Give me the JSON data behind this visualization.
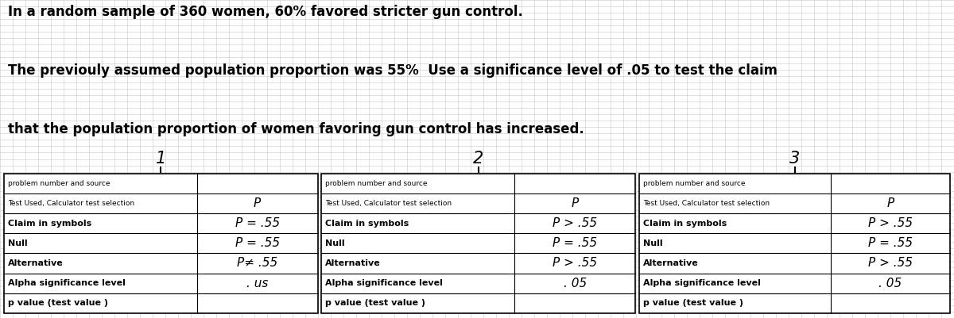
{
  "title_line1": "In a random sample of 360 women, 60% favored stricter gun control.",
  "title_line2": "The previouly assumed population proportion was 55%  Use a significance level of .05 to test the claim",
  "title_line3": "that the population proportion of women favoring gun control has increased.",
  "bg_color": "#ffffff",
  "grid_color": "#c8c8c8",
  "table_border_color": "#000000",
  "col_numbers": [
    "1",
    "2",
    "3"
  ],
  "row_labels": [
    "problem number and source",
    "Test Used, Calculator test selection",
    "Claim in symbols",
    "Null",
    "Alternative",
    "Alpha significance level",
    "p value (test value )"
  ],
  "col1_handwritten": [
    "",
    "P",
    "P = .55",
    "P = .55",
    "P≠ .55",
    ". us",
    ""
  ],
  "col2_handwritten": [
    "",
    "P",
    "P > .55",
    "P = .55",
    "P > .55",
    ". 05",
    ""
  ],
  "col3_handwritten": [
    "",
    "P",
    "P > .55",
    "P = .55",
    "P > .55",
    ". 05",
    ""
  ],
  "text_color": "#000000",
  "handwritten_color": "#000000",
  "title_fontsize": 12,
  "label_fontsize_small": 6.5,
  "label_fontsize_large": 8.0,
  "hw_fontsize": 11
}
